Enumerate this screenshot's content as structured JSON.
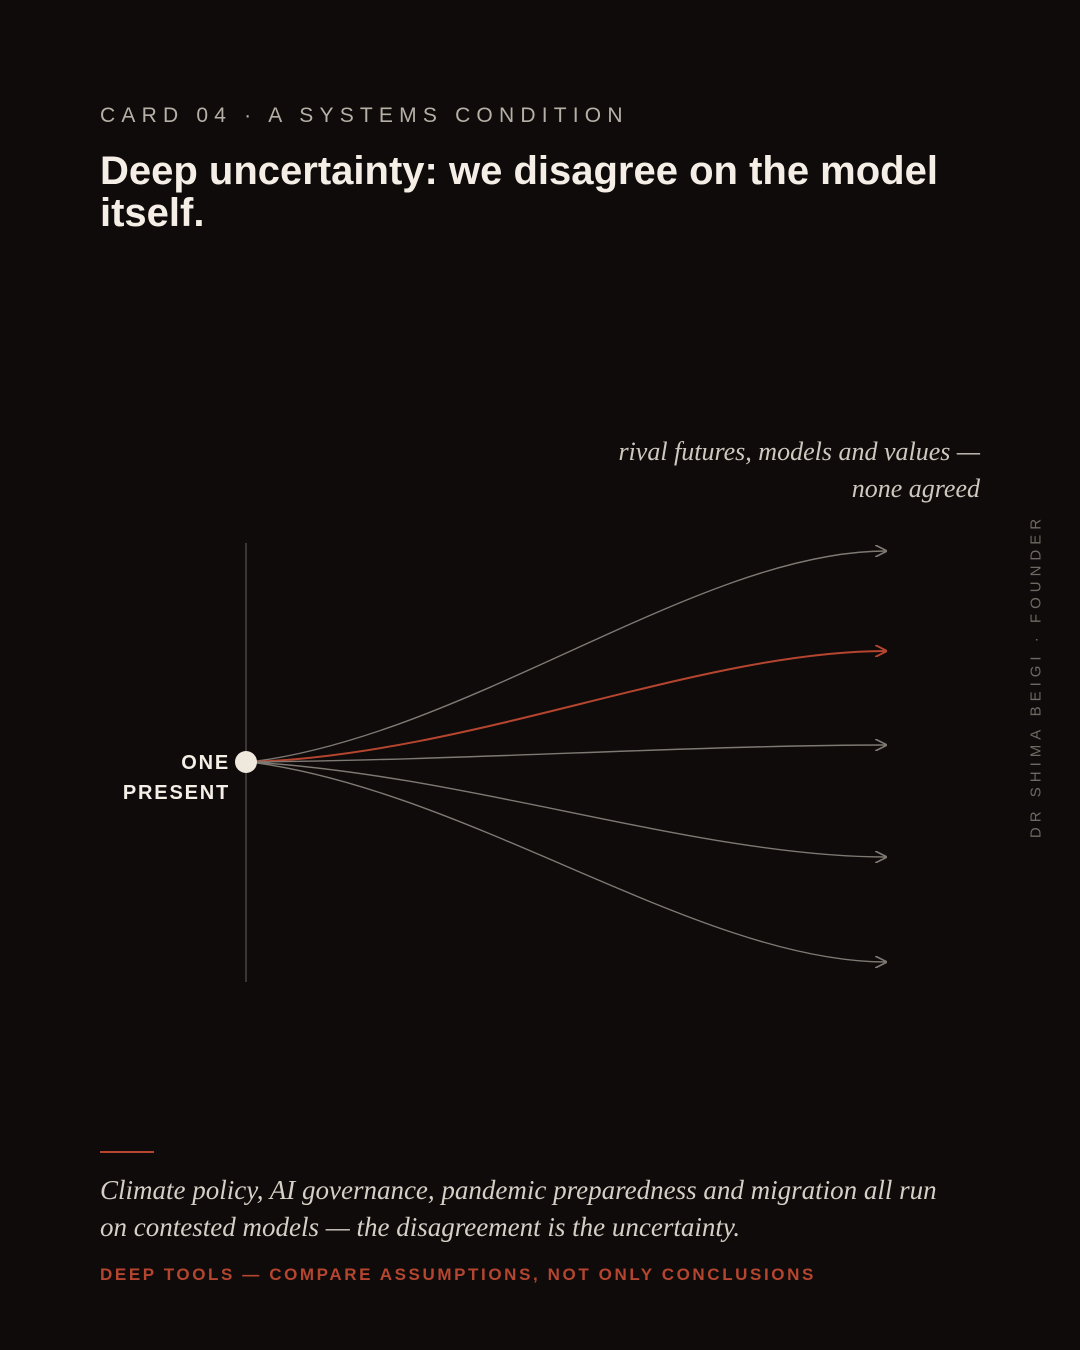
{
  "card": {
    "eyebrow": "CARD 04 · A SYSTEMS CONDITION",
    "title": "Deep uncertainty: we disagree on the model itself.",
    "side_credit": "DR SHIMA BEIGI · FOUNDER"
  },
  "diagram": {
    "annotation_lines": [
      "rival futures, models and values —",
      "none agreed"
    ],
    "origin_label_lines": [
      "ONE",
      "PRESENT"
    ],
    "colors": {
      "neutral_path": "#7f7973",
      "highlight_path": "#b5452f",
      "origin_dot": "#efe8dd",
      "axis": "#4a4541"
    },
    "futures": [
      {
        "highlighted": false
      },
      {
        "highlighted": true
      },
      {
        "highlighted": false
      },
      {
        "highlighted": false
      },
      {
        "highlighted": false
      }
    ]
  },
  "footer": {
    "caption_lines": [
      "Climate policy, AI governance, pandemic preparedness and migration all run",
      "on contested models — the disagreement is the uncertainty."
    ],
    "tagline": "DEEP TOOLS — COMPARE ASSUMPTIONS, NOT ONLY CONCLUSIONS"
  }
}
